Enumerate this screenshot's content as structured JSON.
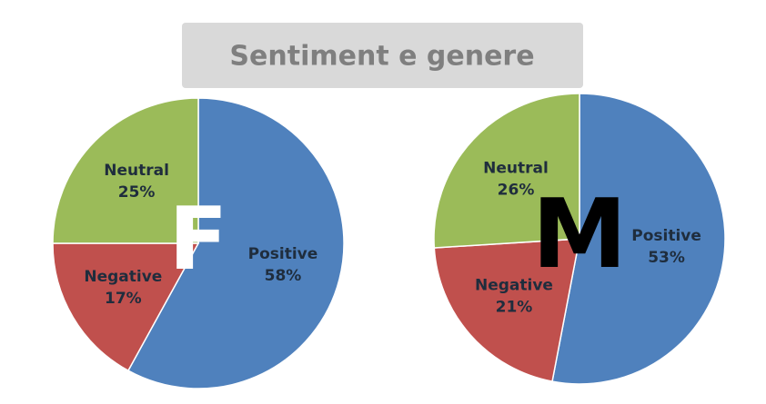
{
  "title": "Sentiment e genere",
  "chart_data": [
    {
      "type": "pie",
      "annotation": "F",
      "annotation_color": "#ffffff",
      "categories": [
        "Positive",
        "Negative",
        "Neutral"
      ],
      "values": [
        58,
        17,
        25
      ],
      "value_labels": [
        "58%",
        "17%",
        "25%"
      ],
      "colors": [
        "#4f81bd",
        "#c0504d",
        "#9bbb59"
      ]
    },
    {
      "type": "pie",
      "annotation": "M",
      "annotation_color": "#000000",
      "categories": [
        "Positive",
        "Negative",
        "Neutral"
      ],
      "values": [
        53,
        21,
        26
      ],
      "value_labels": [
        "53%",
        "21%",
        "26%"
      ],
      "colors": [
        "#4f81bd",
        "#c0504d",
        "#9bbb59"
      ]
    }
  ]
}
